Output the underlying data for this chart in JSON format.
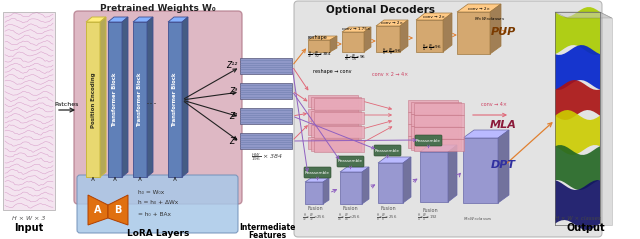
{
  "figsize": [
    6.4,
    2.39
  ],
  "dpi": 100,
  "xlim": [
    0,
    640
  ],
  "ylim": [
    0,
    239
  ],
  "pretrained_bg": "#d4a0b0",
  "lora_bg": "#a8c8e8",
  "pos_enc_color": "#e8d870",
  "pos_enc_dark": "#c8b840",
  "transformer_color": "#6080b8",
  "transformer_dark": "#405090",
  "lora_a_color": "#e07010",
  "lora_b_color": "#e07010",
  "feature_color": "#8898c8",
  "feature_line": "#6070a8",
  "opt_dec_bg": "#dcdcdc",
  "pup_color": "#d4a870",
  "pup_dark": "#a07840",
  "mla_color": "#e8a8b8",
  "mla_dark": "#c07080",
  "dpt_color": "#9898d0",
  "dpt_dark": "#6868a8",
  "reassemble_color": "#4a7050",
  "fusion_arrow": "#9060c0",
  "pink_arrow": "#e06878",
  "orange_arrow": "#e08030",
  "black_arrow": "#222222",
  "seismic_colors": [
    "#ccdd00",
    "#0000cc",
    "#990000",
    "#dddd00",
    "#008800",
    "#000055"
  ],
  "output_colors": [
    "#aacc00",
    "#3333cc",
    "#aa0000",
    "#cccc00",
    "#226622",
    "#000088"
  ]
}
